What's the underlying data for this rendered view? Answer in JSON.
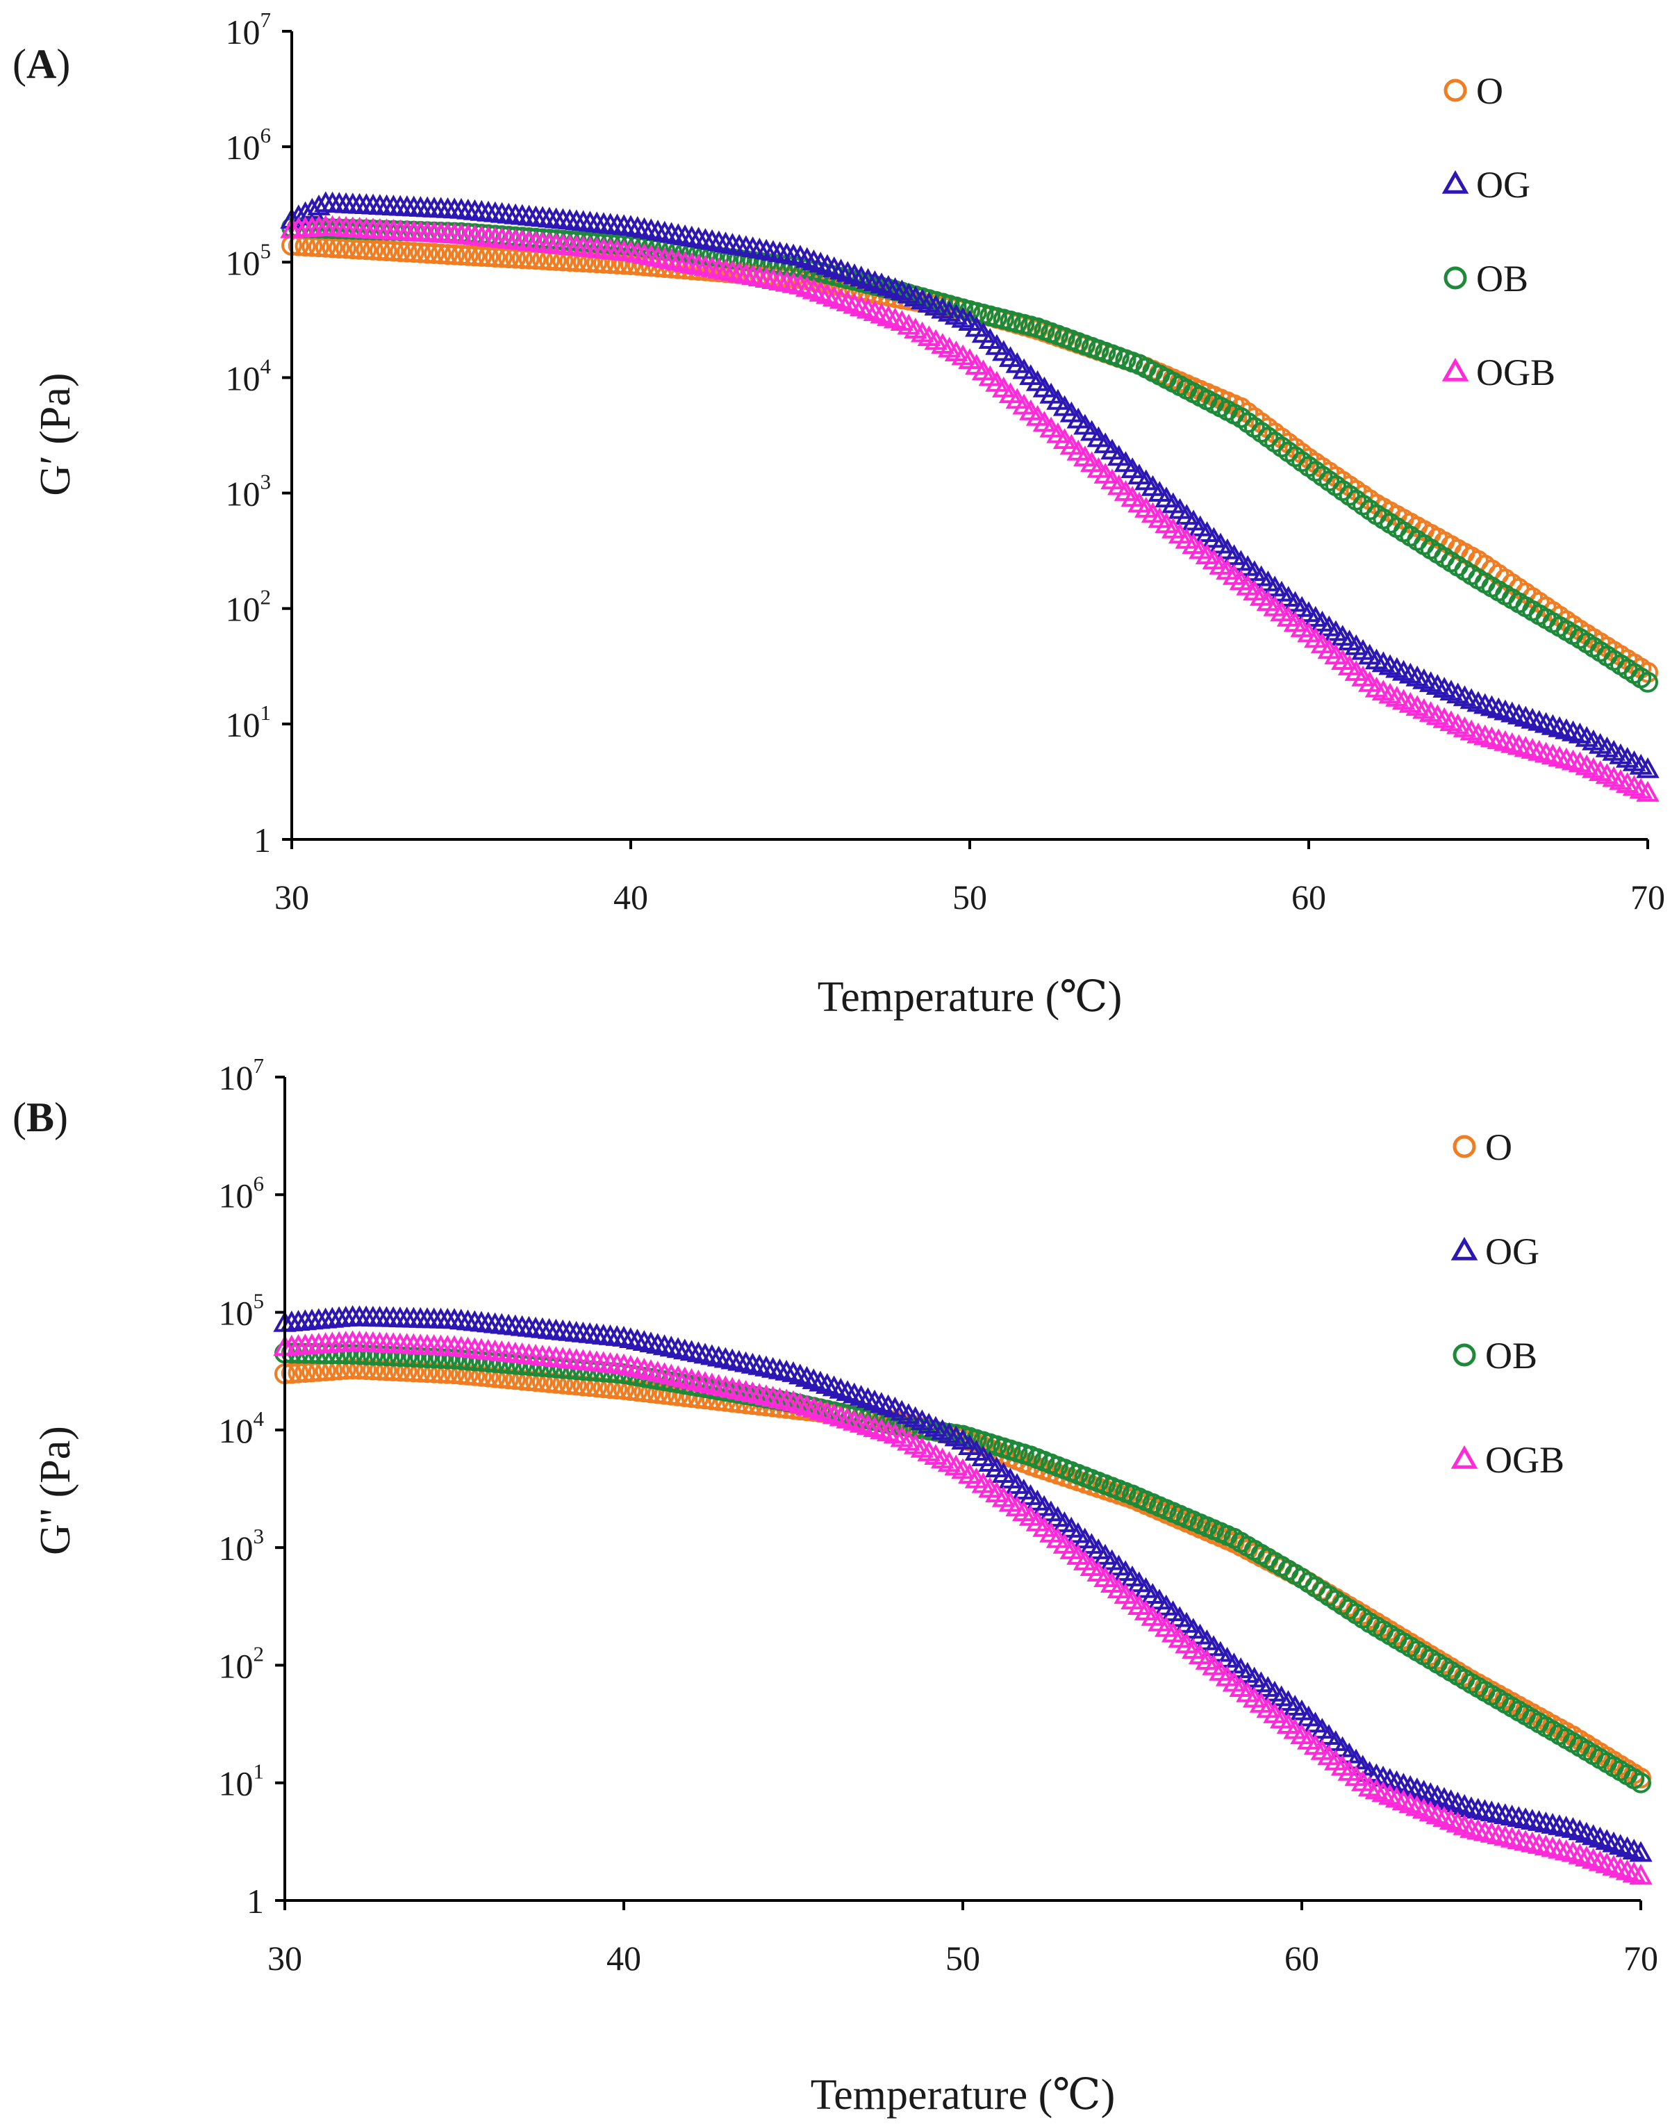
{
  "chart_data": [
    {
      "type": "scatter",
      "panel_label": "A",
      "xlabel": "Temperature (℃)",
      "ylabel": "G′ (Pa)",
      "xlim": [
        30,
        70
      ],
      "ylim": [
        1,
        10000000
      ],
      "y_scale": "log",
      "x_ticks": [
        "30",
        "40",
        "50",
        "60",
        "70"
      ],
      "y_ticks": [
        {
          "base": "1",
          "exp": ""
        },
        {
          "base": "10",
          "exp": "1"
        },
        {
          "base": "10",
          "exp": "2"
        },
        {
          "base": "10",
          "exp": "3"
        },
        {
          "base": "10",
          "exp": "4"
        },
        {
          "base": "10",
          "exp": "5"
        },
        {
          "base": "10",
          "exp": "6"
        },
        {
          "base": "10",
          "exp": "7"
        }
      ],
      "grid": false,
      "legend_position": "top-right",
      "series": [
        {
          "name": "O",
          "marker": "circle",
          "color": "#f07d22",
          "x": [
            30,
            35,
            40,
            45,
            48,
            50,
            52,
            55,
            58,
            60,
            62,
            65,
            68,
            70
          ],
          "y": [
            140000,
            115000,
            95000,
            72000,
            48000,
            38000,
            26000,
            13000,
            5500,
            2000,
            800,
            260,
            65,
            28
          ]
        },
        {
          "name": "OG",
          "marker": "triangle",
          "color": "#2c17b5",
          "x": [
            30,
            31,
            35,
            40,
            45,
            48,
            50,
            52,
            55,
            58,
            60,
            62,
            65,
            68,
            70
          ],
          "y": [
            230000,
            320000,
            280000,
            200000,
            110000,
            55000,
            30000,
            9000,
            1400,
            250,
            90,
            35,
            15,
            8,
            4
          ]
        },
        {
          "name": "OB",
          "marker": "circle",
          "color": "#1d8a3a",
          "x": [
            30,
            35,
            40,
            45,
            48,
            50,
            52,
            55,
            58,
            60,
            62,
            65,
            68,
            70
          ],
          "y": [
            200000,
            180000,
            140000,
            90000,
            55000,
            38000,
            27000,
            13000,
            4500,
            1700,
            650,
            180,
            55,
            23
          ]
        },
        {
          "name": "OGB",
          "marker": "triangle",
          "color": "#ff2bd8",
          "x": [
            30,
            31,
            35,
            40,
            45,
            48,
            50,
            52,
            55,
            58,
            60,
            62,
            65,
            68,
            70
          ],
          "y": [
            190000,
            200000,
            170000,
            120000,
            62000,
            30000,
            14000,
            4500,
            800,
            170,
            60,
            20,
            8,
            4.5,
            2.5
          ]
        }
      ]
    },
    {
      "type": "scatter",
      "panel_label": "B",
      "xlabel": "Temperature (℃)",
      "ylabel": "G'' (Pa)",
      "xlim": [
        30,
        70
      ],
      "ylim": [
        1,
        10000000
      ],
      "y_scale": "log",
      "x_ticks": [
        "30",
        "40",
        "50",
        "60",
        "70"
      ],
      "y_ticks": [
        {
          "base": "1",
          "exp": ""
        },
        {
          "base": "10",
          "exp": "1"
        },
        {
          "base": "10",
          "exp": "2"
        },
        {
          "base": "10",
          "exp": "3"
        },
        {
          "base": "10",
          "exp": "4"
        },
        {
          "base": "10",
          "exp": "5"
        },
        {
          "base": "10",
          "exp": "6"
        },
        {
          "base": "10",
          "exp": "7"
        }
      ],
      "grid": false,
      "legend_position": "top-right",
      "series": [
        {
          "name": "O",
          "marker": "circle",
          "color": "#f07d22",
          "x": [
            30,
            32,
            35,
            40,
            45,
            48,
            50,
            52,
            55,
            58,
            60,
            62,
            65,
            68,
            70
          ],
          "y": [
            30000,
            33000,
            30000,
            22000,
            15000,
            12000,
            8500,
            5000,
            2600,
            1100,
            550,
            250,
            75,
            25,
            11
          ]
        },
        {
          "name": "OG",
          "marker": "triangle",
          "color": "#2c17b5",
          "x": [
            30,
            32,
            35,
            40,
            45,
            48,
            50,
            52,
            55,
            58,
            60,
            62,
            65,
            68,
            70
          ],
          "y": [
            80000,
            90000,
            85000,
            60000,
            30000,
            15000,
            8000,
            2700,
            550,
            100,
            40,
            12,
            6,
            4,
            2.5
          ]
        },
        {
          "name": "OB",
          "marker": "circle",
          "color": "#1d8a3a",
          "x": [
            30,
            32,
            35,
            40,
            45,
            48,
            50,
            52,
            55,
            58,
            60,
            62,
            65,
            68,
            70
          ],
          "y": [
            45000,
            44000,
            40000,
            30000,
            17000,
            11000,
            9000,
            6000,
            2800,
            1200,
            550,
            230,
            70,
            22,
            10
          ]
        },
        {
          "name": "OGB",
          "marker": "triangle",
          "color": "#ff2bd8",
          "x": [
            30,
            32,
            35,
            40,
            45,
            48,
            50,
            52,
            55,
            58,
            60,
            62,
            65,
            68,
            70
          ],
          "y": [
            50000,
            55000,
            50000,
            35000,
            17000,
            9000,
            4500,
            1800,
            350,
            70,
            25,
            9,
            4,
            2.5,
            1.6
          ]
        }
      ]
    }
  ]
}
